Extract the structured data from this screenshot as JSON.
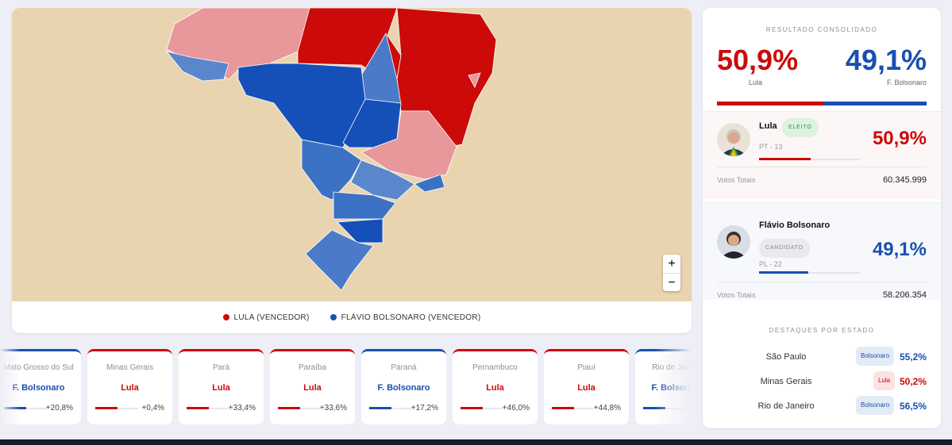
{
  "map": {
    "legend": [
      {
        "label": "LULA (VENCEDOR)",
        "color": "#cc0a0a"
      },
      {
        "label": "FLÁVIO BOLSONARO (VENCEDOR)",
        "color": "#1a4fb0"
      }
    ],
    "zoom_in": "+",
    "zoom_out": "−"
  },
  "state_cards": [
    {
      "state": "Mato Grosso do Sul",
      "winner": "F. Bolsonaro",
      "margin": "+20,8%",
      "color": "#1a4fb0"
    },
    {
      "state": "Minas Gerais",
      "winner": "Lula",
      "margin": "+0,4%",
      "color": "#cc0a0a"
    },
    {
      "state": "Pará",
      "winner": "Lula",
      "margin": "+33,4%",
      "color": "#cc0a0a"
    },
    {
      "state": "Paraíba",
      "winner": "Lula",
      "margin": "+33,6%",
      "color": "#cc0a0a"
    },
    {
      "state": "Paraná",
      "winner": "F. Bolsonaro",
      "margin": "+17,2%",
      "color": "#1a4fb0"
    },
    {
      "state": "Pernambuco",
      "winner": "Lula",
      "margin": "+46,0%",
      "color": "#cc0a0a"
    },
    {
      "state": "Piauí",
      "winner": "Lula",
      "margin": "+44,8%",
      "color": "#cc0a0a"
    },
    {
      "state": "Rio de Janeiro",
      "winner": "F. Bolsonaro",
      "color": "#1a4fb0"
    }
  ],
  "summary": {
    "title": "RESULTADO CONSOLIDADO",
    "shares": [
      {
        "value": 50.9,
        "label": "50,9%",
        "name": "Lula",
        "color": "#cc0a0a"
      },
      {
        "value": 49.1,
        "label": "49,1%",
        "name": "F. Bolsonaro",
        "color": "#1a4fb0"
      }
    ]
  },
  "candidates": [
    {
      "name": "Lula",
      "status": "ELEITO",
      "party": "PT - 13",
      "share": {
        "value": 50.9,
        "label": "50,9%"
      },
      "votes_label": "Votos Totais",
      "votes": "60.345.999",
      "color": "#cc0a0a"
    },
    {
      "name": "Flávio Bolsonaro",
      "status": "CANDIDATO",
      "party": "PL - 22",
      "share": {
        "value": 49.1,
        "label": "49,1%"
      },
      "votes_label": "Votos Totais",
      "votes": "58.206.354",
      "color": "#1a4fb0"
    }
  ],
  "highlights": {
    "title": "DESTAQUES POR ESTADO",
    "rows": [
      {
        "state": "São Paulo",
        "winner": "Bolsonaro",
        "share": "55,2%",
        "color": "#1a4fb0"
      },
      {
        "state": "Minas Gerais",
        "winner": "Lula",
        "share": "50,2%",
        "color": "#cc0a0a"
      },
      {
        "state": "Rio de Janeiro",
        "winner": "Bolsonaro",
        "share": "56,5%",
        "color": "#1a4fb0"
      }
    ]
  }
}
